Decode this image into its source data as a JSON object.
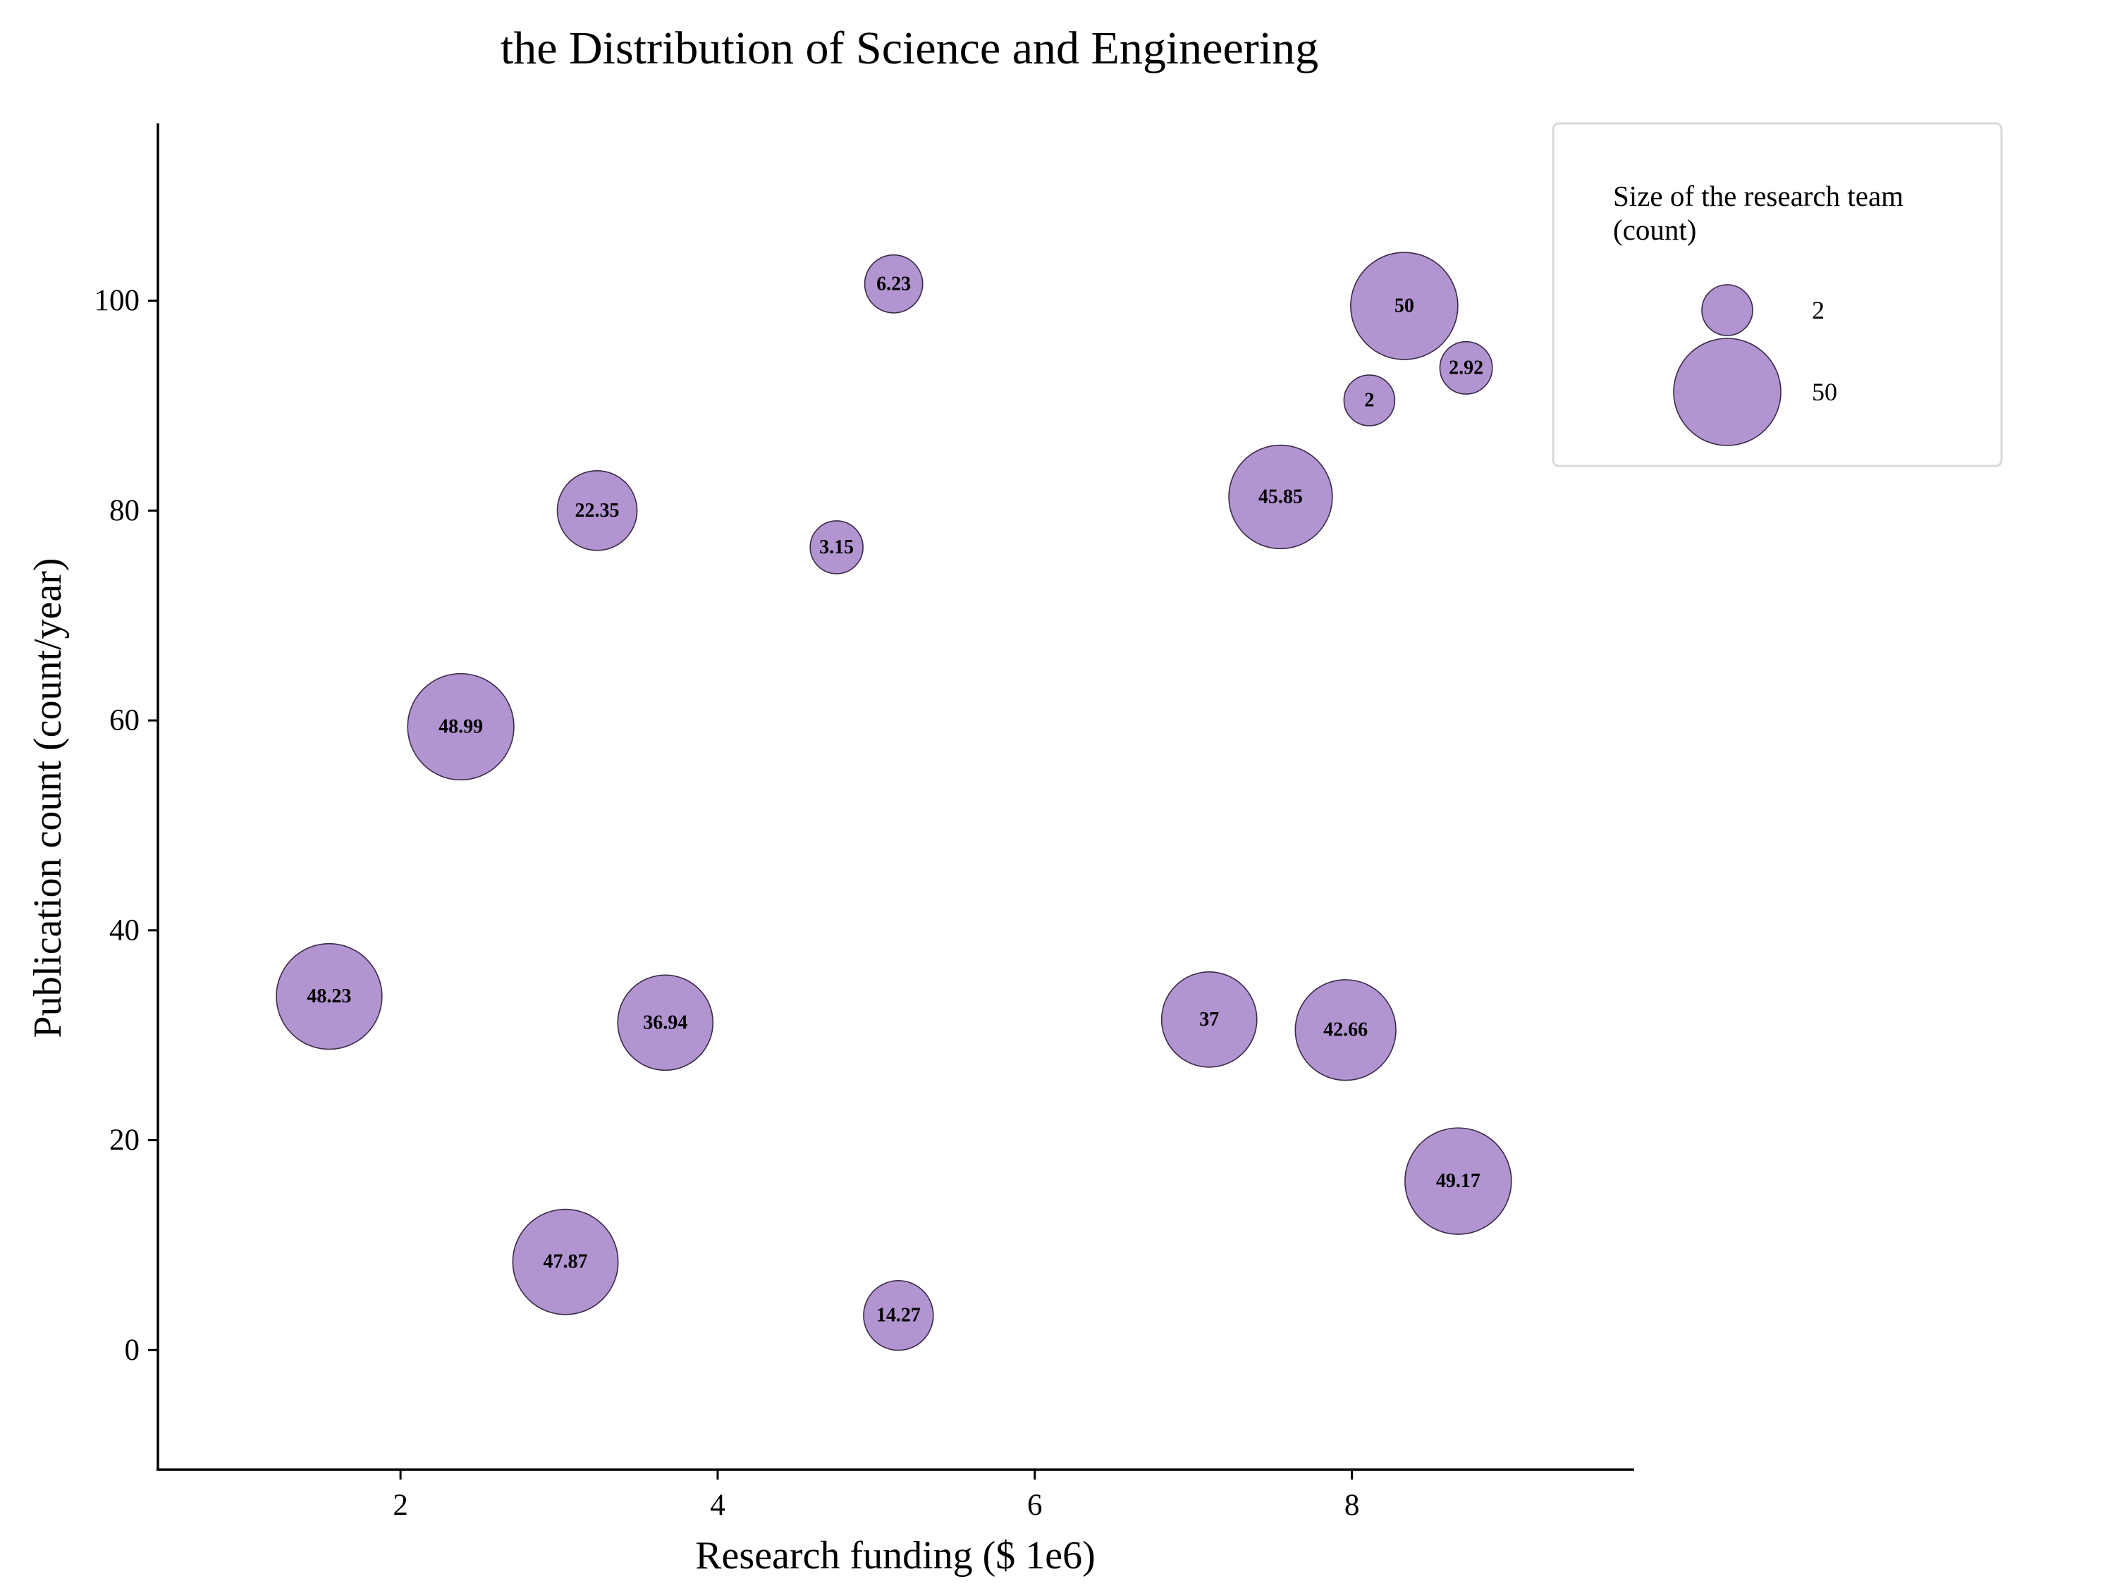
{
  "chart_data": {
    "type": "scatter",
    "title": "the Distribution of Science and Engineering",
    "xlabel": "Research funding ($ 1e6)",
    "ylabel": "Publication count (count/year)",
    "xlim": [
      0.47,
      9.78
    ],
    "ylim": [
      -11.4,
      116.9
    ],
    "xticks": [
      2,
      4,
      6,
      8
    ],
    "yticks": [
      0,
      20,
      40,
      60,
      80,
      100
    ],
    "grid": false,
    "legend": {
      "title_lines": [
        "Size of the research team",
        "(count)"
      ],
      "placement": "upper-right outside",
      "entries": [
        {
          "size": 2,
          "label": "2"
        },
        {
          "size": 50,
          "label": "50"
        }
      ]
    },
    "points": [
      {
        "x": 1.55,
        "y": 33.7,
        "size": 48.23,
        "label": "48.23"
      },
      {
        "x": 2.38,
        "y": 59.4,
        "size": 48.99,
        "label": "48.99"
      },
      {
        "x": 3.04,
        "y": 8.4,
        "size": 47.87,
        "label": "47.87"
      },
      {
        "x": 3.24,
        "y": 80.0,
        "size": 22.35,
        "label": "22.35"
      },
      {
        "x": 3.67,
        "y": 31.2,
        "size": 36.94,
        "label": "36.94"
      },
      {
        "x": 4.75,
        "y": 76.5,
        "size": 3.15,
        "label": "3.15"
      },
      {
        "x": 5.11,
        "y": 101.6,
        "size": 6.23,
        "label": "6.23"
      },
      {
        "x": 5.14,
        "y": 3.3,
        "size": 14.27,
        "label": "14.27"
      },
      {
        "x": 7.1,
        "y": 31.5,
        "size": 37,
        "label": "37"
      },
      {
        "x": 7.55,
        "y": 81.3,
        "size": 45.85,
        "label": "45.85"
      },
      {
        "x": 7.96,
        "y": 30.5,
        "size": 42.66,
        "label": "42.66"
      },
      {
        "x": 8.11,
        "y": 90.5,
        "size": 2,
        "label": "2"
      },
      {
        "x": 8.33,
        "y": 99.5,
        "size": 50,
        "label": "50"
      },
      {
        "x": 8.67,
        "y": 16.1,
        "size": 49.17,
        "label": "49.17"
      },
      {
        "x": 8.72,
        "y": 93.6,
        "size": 2.92,
        "label": "2.92"
      }
    ],
    "colors": {
      "bubble_fill": "#b194d0",
      "bubble_edge": "#3a2a48",
      "axis": "#000000",
      "legend_border": "#d9d9d9"
    }
  }
}
